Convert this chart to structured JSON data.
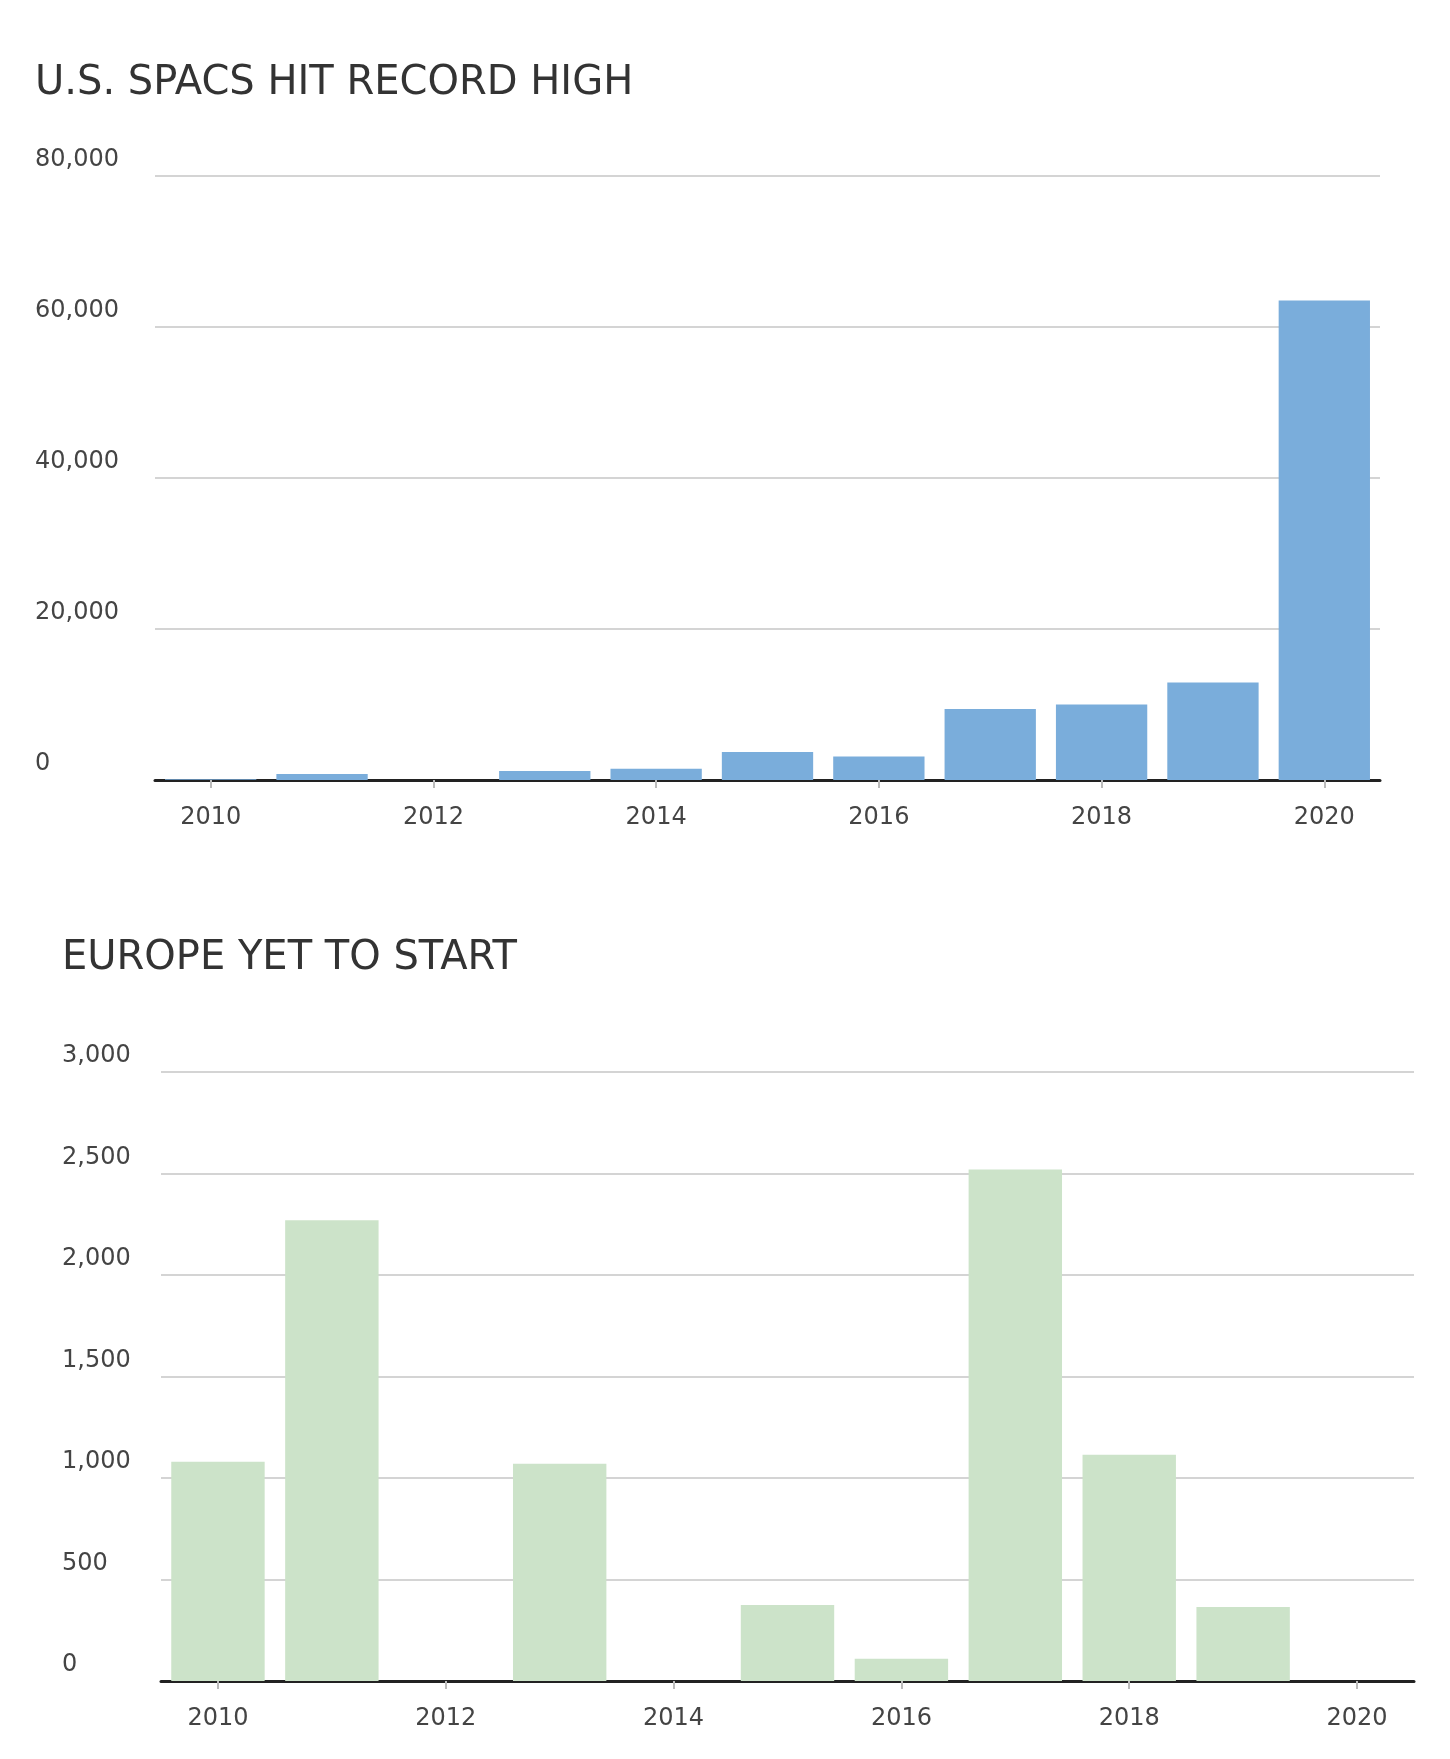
{
  "chart_data": [
    {
      "type": "bar",
      "title": "U.S. SPACS HIT RECORD HIGH",
      "categories": [
        "2010",
        null,
        "2012",
        null,
        "2014",
        null,
        "2016",
        null,
        "2018",
        null,
        "2020"
      ],
      "series": [
        {
          "color": "#7aaddb",
          "values": [
            100,
            800,
            0,
            1200,
            1500,
            3700,
            3100,
            9400,
            10000,
            12900,
            63500
          ]
        }
      ],
      "ylim": [
        0,
        80000
      ],
      "yticks": [
        {
          "value": 0,
          "label": "0"
        },
        {
          "value": 20000,
          "label": "20,000"
        },
        {
          "value": 40000,
          "label": "40,000"
        },
        {
          "value": 60000,
          "label": "60,000"
        },
        {
          "value": 80000,
          "label": "80,000"
        }
      ],
      "grid": "y"
    },
    {
      "type": "bar",
      "title": "EUROPE YET TO START",
      "categories": [
        "2010",
        null,
        "2012",
        null,
        "2014",
        null,
        "2016",
        null,
        "2018",
        null,
        "2020"
      ],
      "series": [
        {
          "color": "#cce3c9",
          "values": [
            1080,
            2270,
            0,
            1070,
            0,
            375,
            110,
            2520,
            1115,
            365,
            0
          ]
        }
      ],
      "ylim": [
        0,
        3000
      ],
      "yticks": [
        {
          "value": 0,
          "label": "0"
        },
        {
          "value": 500,
          "label": "500"
        },
        {
          "value": 1000,
          "label": "1,000"
        },
        {
          "value": 1500,
          "label": "1,500"
        },
        {
          "value": 2000,
          "label": "2,000"
        },
        {
          "value": 2500,
          "label": "2,500"
        },
        {
          "value": 3000,
          "label": "3,000"
        }
      ],
      "grid": "y"
    }
  ]
}
